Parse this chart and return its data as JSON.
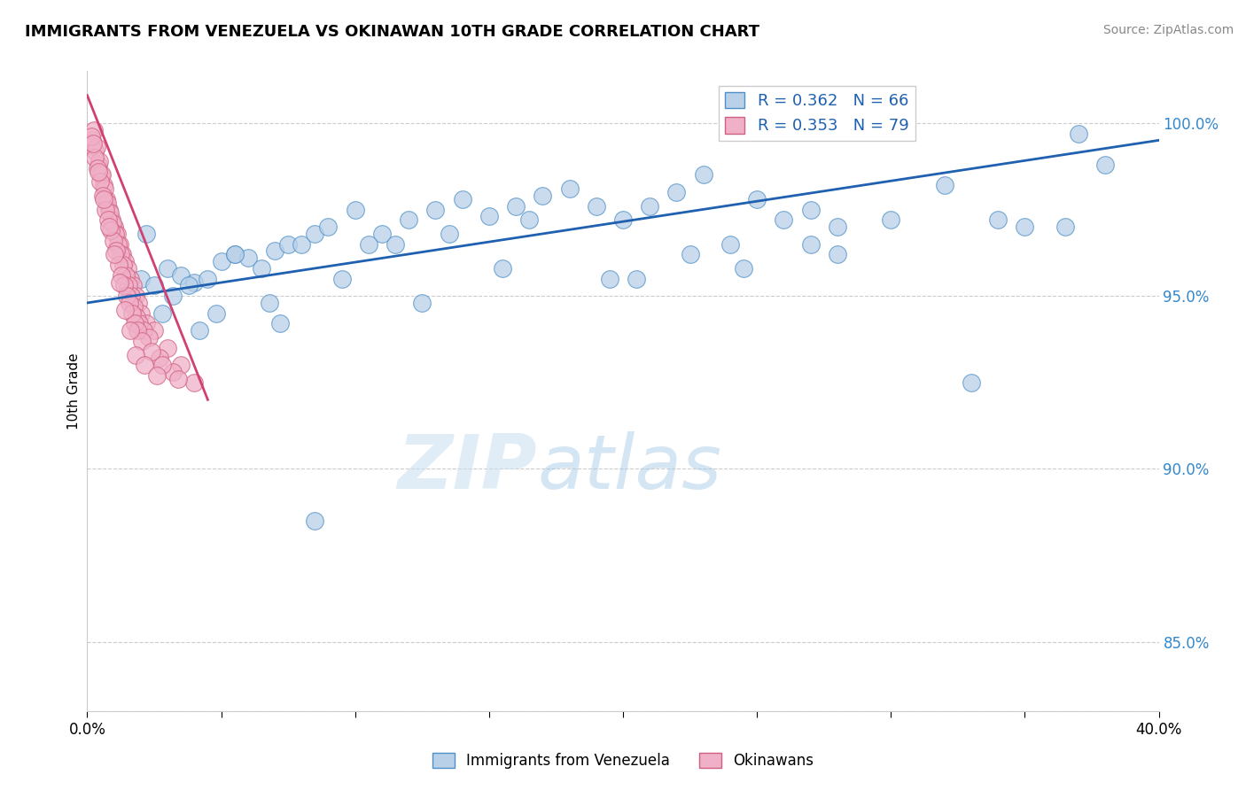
{
  "title": "IMMIGRANTS FROM VENEZUELA VS OKINAWAN 10TH GRADE CORRELATION CHART",
  "source": "Source: ZipAtlas.com",
  "ylabel": "10th Grade",
  "xlim": [
    0.0,
    40.0
  ],
  "ylim": [
    83.0,
    101.5
  ],
  "legend_r1": "R = 0.362",
  "legend_n1": "N = 66",
  "legend_r2": "R = 0.353",
  "legend_n2": "N = 79",
  "legend_label1": "Immigrants from Venezuela",
  "legend_label2": "Okinawans",
  "blue_color": "#b8d0e8",
  "blue_edge_color": "#5090c8",
  "blue_line_color": "#2060b0",
  "pink_color": "#f0b0c8",
  "pink_edge_color": "#d06080",
  "pink_line_color": "#d04070",
  "watermark_zip": "ZIP",
  "watermark_atlas": "atlas",
  "ytick_positions": [
    85.0,
    90.0,
    95.0,
    100.0
  ],
  "ytick_labels": [
    "85.0%",
    "90.0%",
    "95.0%",
    "100.0%"
  ],
  "xtick_positions": [
    0.0,
    5.0,
    10.0,
    15.0,
    20.0,
    25.0,
    30.0,
    35.0,
    40.0
  ],
  "blue_scatter_x": [
    1.5,
    2.0,
    2.5,
    3.0,
    3.5,
    4.0,
    4.5,
    5.0,
    5.5,
    6.0,
    6.5,
    7.0,
    7.5,
    8.0,
    8.5,
    9.0,
    10.0,
    11.0,
    12.0,
    13.0,
    14.0,
    15.0,
    16.0,
    17.0,
    18.0,
    19.0,
    20.0,
    21.0,
    22.0,
    23.0,
    24.0,
    25.0,
    26.0,
    27.0,
    28.0,
    30.0,
    32.0,
    35.0,
    37.0,
    38.0,
    2.8,
    3.2,
    4.2,
    5.5,
    6.8,
    8.5,
    10.5,
    13.5,
    16.5,
    19.5,
    22.5,
    27.0,
    33.0,
    3.8,
    7.2,
    11.5,
    15.5,
    20.5,
    24.5,
    28.0,
    34.0,
    36.5,
    2.2,
    4.8,
    9.5,
    12.5
  ],
  "blue_scatter_y": [
    95.2,
    95.5,
    95.3,
    95.8,
    95.6,
    95.4,
    95.5,
    96.0,
    96.2,
    96.1,
    95.8,
    96.3,
    96.5,
    96.5,
    96.8,
    97.0,
    97.5,
    96.8,
    97.2,
    97.5,
    97.8,
    97.3,
    97.6,
    97.9,
    98.1,
    97.6,
    97.2,
    97.6,
    98.0,
    98.5,
    96.5,
    97.8,
    97.2,
    97.5,
    97.0,
    97.2,
    98.2,
    97.0,
    99.7,
    98.8,
    94.5,
    95.0,
    94.0,
    96.2,
    94.8,
    88.5,
    96.5,
    96.8,
    97.2,
    95.5,
    96.2,
    96.5,
    92.5,
    95.3,
    94.2,
    96.5,
    95.8,
    95.5,
    95.8,
    96.2,
    97.2,
    97.0,
    96.8,
    94.5,
    95.5,
    94.8
  ],
  "pink_scatter_x": [
    0.2,
    0.3,
    0.4,
    0.5,
    0.6,
    0.7,
    0.8,
    0.9,
    1.0,
    1.1,
    1.2,
    1.3,
    1.4,
    1.5,
    1.6,
    1.7,
    1.8,
    1.9,
    2.0,
    2.2,
    2.5,
    3.0,
    3.5,
    4.0,
    0.25,
    0.35,
    0.45,
    0.55,
    0.65,
    0.75,
    0.85,
    0.95,
    1.05,
    1.15,
    1.25,
    1.35,
    1.45,
    1.55,
    1.65,
    1.75,
    1.85,
    1.95,
    2.1,
    2.3,
    2.7,
    3.2,
    0.15,
    0.28,
    0.38,
    0.48,
    0.58,
    0.68,
    0.78,
    0.88,
    0.98,
    1.08,
    1.18,
    1.28,
    1.38,
    1.48,
    1.58,
    1.68,
    1.78,
    1.88,
    2.05,
    2.4,
    2.8,
    3.4,
    0.22,
    0.42,
    0.62,
    0.82,
    1.02,
    1.22,
    1.42,
    1.62,
    1.82,
    2.15,
    2.6
  ],
  "pink_scatter_y": [
    99.5,
    99.2,
    98.8,
    98.5,
    98.2,
    97.8,
    97.5,
    97.2,
    97.0,
    96.8,
    96.5,
    96.2,
    96.0,
    95.8,
    95.5,
    95.3,
    95.0,
    94.8,
    94.5,
    94.2,
    94.0,
    93.5,
    93.0,
    92.5,
    99.8,
    99.3,
    98.9,
    98.5,
    98.1,
    97.7,
    97.4,
    97.1,
    96.8,
    96.5,
    96.2,
    95.9,
    95.6,
    95.3,
    95.0,
    94.7,
    94.4,
    94.2,
    94.0,
    93.8,
    93.2,
    92.8,
    99.6,
    99.0,
    98.7,
    98.3,
    97.9,
    97.5,
    97.2,
    96.9,
    96.6,
    96.3,
    95.9,
    95.6,
    95.3,
    95.0,
    94.8,
    94.5,
    94.2,
    94.0,
    93.7,
    93.4,
    93.0,
    92.6,
    99.4,
    98.6,
    97.8,
    97.0,
    96.2,
    95.4,
    94.6,
    94.0,
    93.3,
    93.0,
    92.7
  ],
  "blue_trend_x": [
    0.0,
    40.0
  ],
  "blue_trend_y": [
    94.8,
    99.5
  ],
  "pink_trend_x": [
    0.0,
    4.5
  ],
  "pink_trend_y": [
    100.8,
    92.0
  ]
}
